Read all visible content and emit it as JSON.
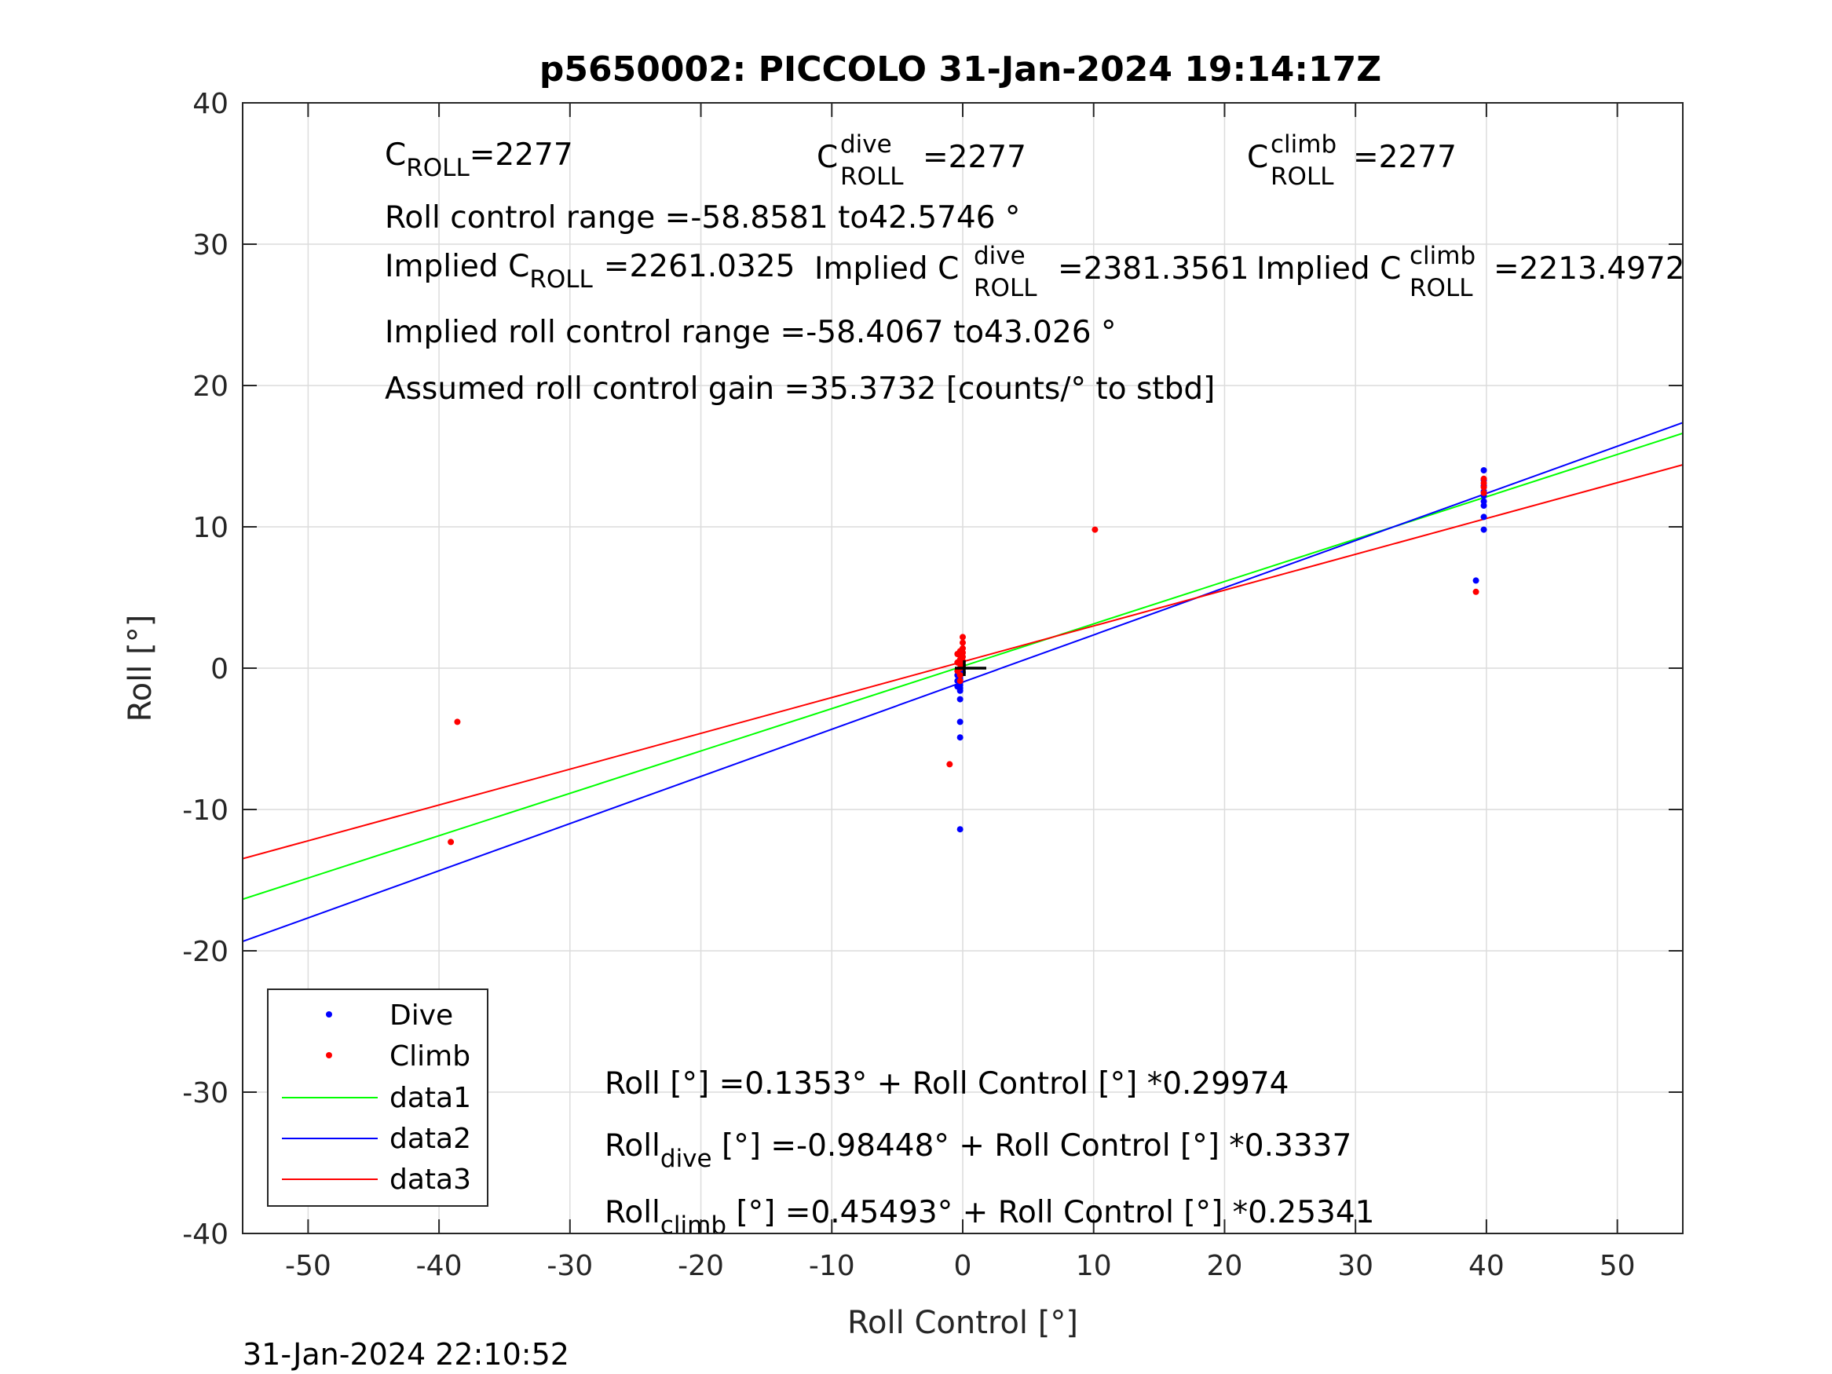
{
  "chart_data": {
    "type": "scatter",
    "title": "p5650002: PICCOLO 31-Jan-2024 19:14:17Z",
    "xlabel": "Roll Control [°]",
    "ylabel": "Roll [°]",
    "xlim": [
      -55,
      55
    ],
    "ylim": [
      -40,
      40
    ],
    "xticks": [
      -50,
      -40,
      -30,
      -20,
      -10,
      0,
      10,
      20,
      30,
      40,
      50
    ],
    "yticks": [
      -40,
      -30,
      -20,
      -10,
      0,
      10,
      20,
      30,
      40
    ],
    "xtick_labels": [
      "-50",
      "-40",
      "-30",
      "-20",
      "-10",
      "0",
      "10",
      "20",
      "30",
      "40",
      "50"
    ],
    "ytick_labels": [
      "-40",
      "-30",
      "-20",
      "-10",
      "0",
      "10",
      "20",
      "30",
      "40"
    ],
    "grid": true,
    "legend_position": "bottom-left",
    "series": [
      {
        "name": "Dive",
        "kind": "points",
        "color": "#0000ff",
        "points": [
          [
            -0.2,
            -0.2
          ],
          [
            -0.2,
            -0.4
          ],
          [
            -0.2,
            -0.6
          ],
          [
            -0.2,
            -0.8
          ],
          [
            -0.2,
            -1.0
          ],
          [
            -0.2,
            -1.2
          ],
          [
            -0.2,
            -1.4
          ],
          [
            -0.2,
            -1.6
          ],
          [
            -0.2,
            -2.2
          ],
          [
            -0.2,
            -3.8
          ],
          [
            -0.2,
            -4.9
          ],
          [
            -0.2,
            -11.4
          ],
          [
            -0.4,
            -0.5
          ],
          [
            -0.4,
            -0.9
          ],
          [
            -0.4,
            -1.3
          ],
          [
            0.0,
            0.2
          ],
          [
            0.0,
            -0.3
          ],
          [
            39.8,
            14.0
          ],
          [
            39.8,
            13.3
          ],
          [
            39.8,
            12.9
          ],
          [
            39.8,
            12.5
          ],
          [
            39.8,
            12.2
          ],
          [
            39.8,
            11.8
          ],
          [
            39.8,
            11.5
          ],
          [
            39.8,
            10.7
          ],
          [
            39.8,
            9.8
          ],
          [
            39.2,
            6.2
          ]
        ]
      },
      {
        "name": "Climb",
        "kind": "points",
        "color": "#ff0000",
        "points": [
          [
            0.0,
            2.2
          ],
          [
            0.0,
            1.8
          ],
          [
            0.0,
            1.4
          ],
          [
            0.0,
            1.1
          ],
          [
            0.0,
            0.8
          ],
          [
            0.0,
            0.5
          ],
          [
            0.0,
            0.2
          ],
          [
            -0.2,
            1.2
          ],
          [
            -0.2,
            0.9
          ],
          [
            -0.2,
            0.6
          ],
          [
            -0.2,
            0.3
          ],
          [
            -0.2,
            0.0
          ],
          [
            -0.4,
            1.0
          ],
          [
            -0.4,
            0.4
          ],
          [
            -0.4,
            -0.2
          ],
          [
            -0.2,
            -0.5
          ],
          [
            -0.2,
            -0.9
          ],
          [
            -1.0,
            -6.8
          ],
          [
            10.1,
            9.8
          ],
          [
            -38.6,
            -3.8
          ],
          [
            -39.1,
            -12.3
          ],
          [
            39.8,
            13.4
          ],
          [
            39.8,
            13.1
          ],
          [
            39.8,
            12.8
          ],
          [
            39.8,
            12.4
          ],
          [
            39.2,
            5.4
          ]
        ]
      },
      {
        "name": "data1",
        "kind": "line",
        "color": "#00ff00",
        "intercept": 0.1353,
        "slope": 0.29974
      },
      {
        "name": "data2",
        "kind": "line",
        "color": "#0000ff",
        "intercept": -0.98448,
        "slope": 0.3337
      },
      {
        "name": "data3",
        "kind": "line",
        "color": "#ff0000",
        "intercept": 0.45493,
        "slope": 0.25341
      }
    ],
    "marker": {
      "x": 0.6,
      "y": 0,
      "color": "#000000"
    }
  },
  "annotations": {
    "c_roll": {
      "base": "C",
      "sub": "ROLL",
      "value": "=2277"
    },
    "c_roll_dive": {
      "base": "C",
      "sup": "dive",
      "sub": "ROLL",
      "value": "=2277"
    },
    "c_roll_climb": {
      "base": "C",
      "sup": "climb",
      "sub": "ROLL",
      "value": "=2277"
    },
    "roll_control_range": "Roll control range =-58.8581 to42.5746 °",
    "implied_c_roll": {
      "prefix": "Implied C",
      "sub": "ROLL",
      "value": "=2261.0325"
    },
    "implied_c_roll_dive": {
      "prefix": "Implied C",
      "sup": "dive",
      "sub": "ROLL",
      "value": "=2381.3561"
    },
    "implied_c_roll_climb": {
      "prefix": "Implied C",
      "sup": "climb",
      "sub": "ROLL",
      "value": "=2213.4972"
    },
    "implied_roll_control_range": "Implied roll control range =-58.4067 to43.026 °",
    "assumed_gain": "Assumed roll control gain =35.3732 [counts/° to stbd]",
    "fit_all": "Roll [°] =0.1353° + Roll Control [°] *0.29974",
    "fit_dive": {
      "base": "Roll",
      "sub": "dive",
      "rest": " [°] =-0.98448° + Roll Control [°] *0.3337"
    },
    "fit_climb": {
      "base": "Roll",
      "sub": "climb",
      "rest": " [°] =0.45493° + Roll Control [°] *0.25341"
    }
  },
  "footer_timestamp": "31-Jan-2024 22:10:52"
}
